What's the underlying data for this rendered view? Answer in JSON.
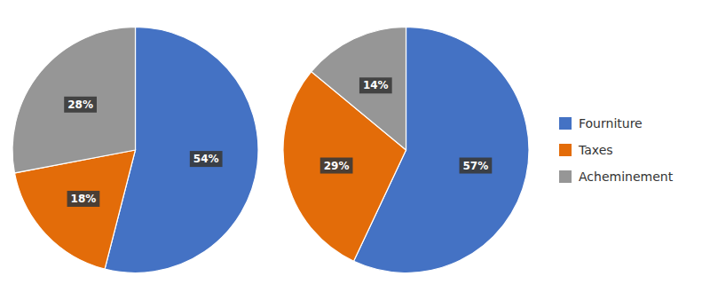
{
  "chart_data": {
    "type": "pie",
    "categories": [
      "Fourniture",
      "Taxes",
      "Acheminement"
    ],
    "colors": [
      "#4472C4",
      "#E36C09",
      "#969696"
    ],
    "legend": "right",
    "data_labels": true,
    "series": [
      {
        "values": [
          54,
          18,
          28
        ],
        "value_labels": [
          "54%",
          "18%",
          "28%"
        ]
      },
      {
        "values": [
          57,
          29,
          14
        ],
        "value_labels": [
          "57%",
          "29%",
          "14%"
        ]
      }
    ]
  }
}
